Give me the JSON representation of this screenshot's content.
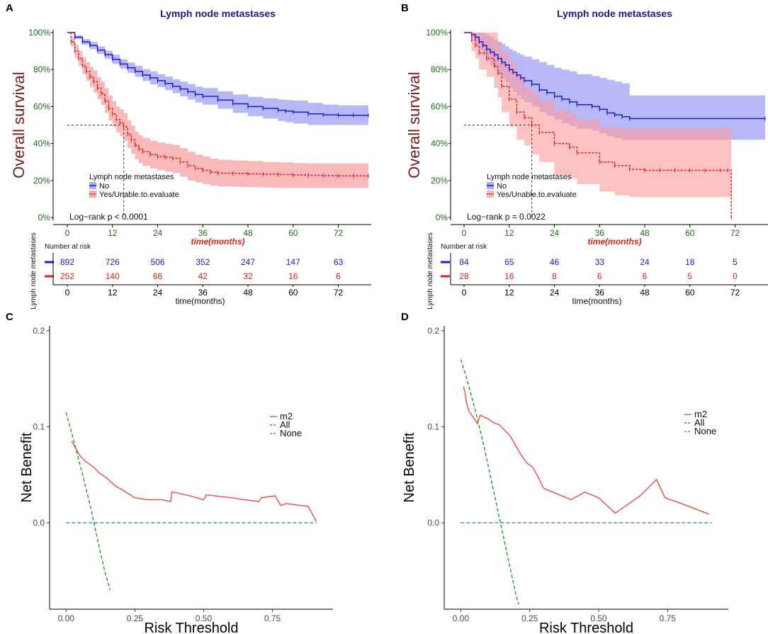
{
  "chart_data": [
    {
      "panel": "A",
      "type": "line",
      "subtype": "kaplan-meier",
      "title": "Lymph node metastases",
      "ylabel": "Overall survival",
      "xlabel": "time(months)",
      "ylim": [
        0,
        1
      ],
      "xlim": [
        0,
        80
      ],
      "y_ticks": [
        "0%",
        "20%",
        "40%",
        "60%",
        "80%",
        "100%"
      ],
      "x_ticks": [
        "0",
        "12",
        "24",
        "36",
        "48",
        "60",
        "72"
      ],
      "legend_title": "Lymph node metastases",
      "pvalue_text": "Log−rank p < 0.0001",
      "median_survival": {
        "survival": 0.5,
        "time": 15
      },
      "series": [
        {
          "name": "No",
          "color": "#1c1ccd",
          "band_color": "#8888f2",
          "x": [
            0,
            2,
            4,
            6,
            8,
            10,
            12,
            14,
            16,
            18,
            20,
            22,
            24,
            26,
            28,
            30,
            32,
            34,
            36,
            40,
            44,
            48,
            52,
            56,
            58,
            60,
            64,
            68,
            72,
            76,
            80
          ],
          "y": [
            1.0,
            0.975,
            0.95,
            0.93,
            0.905,
            0.88,
            0.855,
            0.83,
            0.81,
            0.79,
            0.77,
            0.755,
            0.74,
            0.725,
            0.71,
            0.695,
            0.68,
            0.665,
            0.655,
            0.635,
            0.615,
            0.6,
            0.59,
            0.58,
            0.575,
            0.57,
            0.56,
            0.555,
            0.553,
            0.553,
            0.553
          ],
          "lower": [
            1.0,
            0.965,
            0.935,
            0.91,
            0.885,
            0.858,
            0.83,
            0.805,
            0.782,
            0.76,
            0.738,
            0.72,
            0.705,
            0.688,
            0.672,
            0.655,
            0.638,
            0.622,
            0.61,
            0.588,
            0.565,
            0.548,
            0.535,
            0.522,
            0.515,
            0.508,
            0.5,
            0.5,
            0.5,
            0.5,
            0.5
          ],
          "upper": [
            1.0,
            0.985,
            0.965,
            0.95,
            0.925,
            0.902,
            0.88,
            0.855,
            0.838,
            0.82,
            0.802,
            0.79,
            0.775,
            0.762,
            0.748,
            0.735,
            0.722,
            0.708,
            0.7,
            0.682,
            0.665,
            0.652,
            0.645,
            0.638,
            0.635,
            0.632,
            0.62,
            0.61,
            0.606,
            0.606,
            0.606
          ]
        },
        {
          "name": "Yes/Unable.to.evaluate",
          "color": "#e0201c",
          "band_color": "#f28a8a",
          "x": [
            0,
            1,
            2,
            3,
            4,
            5,
            6,
            7,
            8,
            9,
            10,
            11,
            12,
            13,
            14,
            15,
            16,
            17,
            18,
            19,
            20,
            22,
            24,
            26,
            28,
            30,
            32,
            34,
            36,
            38,
            40,
            44,
            48,
            52,
            56,
            60,
            64,
            68,
            72,
            76,
            80
          ],
          "y": [
            1.0,
            0.95,
            0.9,
            0.86,
            0.82,
            0.79,
            0.76,
            0.735,
            0.7,
            0.67,
            0.63,
            0.59,
            0.56,
            0.53,
            0.51,
            0.49,
            0.45,
            0.42,
            0.39,
            0.37,
            0.355,
            0.34,
            0.33,
            0.325,
            0.32,
            0.3,
            0.28,
            0.265,
            0.255,
            0.245,
            0.24,
            0.238,
            0.236,
            0.234,
            0.232,
            0.23,
            0.228,
            0.226,
            0.225,
            0.225,
            0.225
          ],
          "lower": [
            1.0,
            0.925,
            0.865,
            0.82,
            0.775,
            0.74,
            0.705,
            0.675,
            0.64,
            0.608,
            0.565,
            0.525,
            0.49,
            0.46,
            0.44,
            0.415,
            0.375,
            0.345,
            0.315,
            0.295,
            0.28,
            0.265,
            0.255,
            0.248,
            0.24,
            0.22,
            0.2,
            0.19,
            0.18,
            0.172,
            0.168,
            0.166,
            0.164,
            0.162,
            0.16,
            0.16,
            0.16,
            0.16,
            0.16,
            0.16,
            0.16
          ],
          "upper": [
            1.0,
            0.975,
            0.935,
            0.9,
            0.865,
            0.84,
            0.815,
            0.795,
            0.76,
            0.735,
            0.7,
            0.66,
            0.63,
            0.6,
            0.585,
            0.565,
            0.525,
            0.495,
            0.465,
            0.445,
            0.43,
            0.415,
            0.405,
            0.398,
            0.392,
            0.375,
            0.355,
            0.34,
            0.33,
            0.318,
            0.312,
            0.308,
            0.305,
            0.3,
            0.298,
            0.294,
            0.292,
            0.292,
            0.292,
            0.292,
            0.292
          ]
        }
      ],
      "risk_table": {
        "header": "Number at risk",
        "ylabel": "Lymph node metastases",
        "xlabel": "time(months)",
        "times": [
          "0",
          "12",
          "24",
          "36",
          "48",
          "60",
          "72"
        ],
        "rows": [
          {
            "color": "#1c1ccd",
            "values": [
              "892",
              "726",
              "506",
              "352",
              "247",
              "147",
              "63"
            ]
          },
          {
            "color": "#e0201c",
            "values": [
              "252",
              "140",
              "66",
              "42",
              "32",
              "16",
              "6"
            ]
          }
        ]
      }
    },
    {
      "panel": "B",
      "type": "line",
      "subtype": "kaplan-meier",
      "title": "Lymph node metastases",
      "ylabel": "Overall survival",
      "xlabel": "time(months)",
      "ylim": [
        0,
        1
      ],
      "xlim": [
        0,
        80
      ],
      "y_ticks": [
        "0%",
        "20%",
        "40%",
        "60%",
        "80%",
        "100%"
      ],
      "x_ticks": [
        "0",
        "12",
        "24",
        "36",
        "48",
        "60",
        "72"
      ],
      "legend_title": "Lymph node metastases",
      "pvalue_text": "Log−rank p = 0.0022",
      "median_survival": {
        "survival": 0.5,
        "time": 18
      },
      "series": [
        {
          "name": "No",
          "color": "#1c1ccd",
          "band_color": "#8888f2",
          "x": [
            0,
            2,
            3,
            4,
            5,
            6,
            7,
            8,
            9,
            10,
            11,
            12,
            13,
            14,
            15,
            16,
            18,
            20,
            22,
            24,
            26,
            28,
            30,
            34,
            36,
            38,
            40,
            42,
            44,
            80
          ],
          "y": [
            1.0,
            0.99,
            0.975,
            0.95,
            0.93,
            0.91,
            0.895,
            0.88,
            0.86,
            0.84,
            0.825,
            0.8,
            0.785,
            0.77,
            0.755,
            0.74,
            0.72,
            0.69,
            0.675,
            0.655,
            0.64,
            0.625,
            0.61,
            0.6,
            0.585,
            0.565,
            0.555,
            0.545,
            0.535,
            0.535
          ],
          "lower": [
            1.0,
            0.97,
            0.94,
            0.905,
            0.875,
            0.845,
            0.82,
            0.8,
            0.775,
            0.75,
            0.73,
            0.7,
            0.68,
            0.66,
            0.64,
            0.625,
            0.6,
            0.57,
            0.55,
            0.53,
            0.51,
            0.495,
            0.48,
            0.47,
            0.455,
            0.44,
            0.43,
            0.42,
            0.42,
            0.42
          ],
          "upper": [
            1.0,
            1.0,
            1.0,
            1.0,
            0.995,
            0.985,
            0.975,
            0.96,
            0.95,
            0.94,
            0.925,
            0.91,
            0.9,
            0.89,
            0.88,
            0.87,
            0.855,
            0.84,
            0.825,
            0.81,
            0.8,
            0.79,
            0.775,
            0.765,
            0.755,
            0.745,
            0.735,
            0.725,
            0.66,
            0.66
          ]
        },
        {
          "name": "Yes/Unable.to.evaluate",
          "color": "#e0201c",
          "band_color": "#ff9a9a",
          "x": [
            0,
            2,
            3,
            4,
            6,
            8,
            9,
            10,
            12,
            14,
            16,
            18,
            20,
            24,
            28,
            30,
            36,
            40,
            44,
            48,
            52,
            56,
            60,
            64,
            68,
            70,
            71
          ],
          "y": [
            1.0,
            0.96,
            0.93,
            0.89,
            0.86,
            0.82,
            0.78,
            0.71,
            0.64,
            0.57,
            0.54,
            0.5,
            0.46,
            0.4,
            0.38,
            0.35,
            0.3,
            0.28,
            0.26,
            0.255,
            0.255,
            0.255,
            0.255,
            0.255,
            0.255,
            0.255,
            0.0
          ],
          "lower": [
            1.0,
            0.9,
            0.86,
            0.8,
            0.76,
            0.7,
            0.65,
            0.57,
            0.49,
            0.42,
            0.39,
            0.34,
            0.3,
            0.23,
            0.21,
            0.18,
            0.14,
            0.12,
            0.11,
            0.11,
            0.11,
            0.11,
            0.11,
            0.11,
            0.11,
            0.11,
            0.11
          ],
          "upper": [
            1.0,
            1.0,
            1.0,
            1.0,
            1.0,
            1.0,
            0.95,
            0.89,
            0.84,
            0.77,
            0.7,
            0.67,
            0.63,
            0.58,
            0.56,
            0.53,
            0.49,
            0.48,
            0.48,
            0.48,
            0.48,
            0.48,
            0.48,
            0.48,
            0.48,
            0.48,
            0.48
          ]
        }
      ],
      "risk_table": {
        "header": "Number at risk",
        "ylabel": "Lymph node metastases",
        "xlabel": "time(months)",
        "times": [
          "0",
          "12",
          "24",
          "36",
          "48",
          "60",
          "72"
        ],
        "rows": [
          {
            "color": "#1c1ccd",
            "values": [
              "84",
              "65",
              "46",
              "33",
              "24",
              "18",
              "5"
            ]
          },
          {
            "color": "#e0201c",
            "values": [
              "28",
              "16",
              "8",
              "6",
              "6",
              "5",
              "0"
            ]
          }
        ]
      }
    },
    {
      "panel": "C",
      "type": "line",
      "subtype": "decision-curve",
      "xlabel": "Risk Threshold",
      "ylabel": "Net Benefit",
      "xlim": [
        -0.06,
        0.97
      ],
      "ylim": [
        -0.09,
        0.205
      ],
      "x_ticks": [
        "0.00",
        "0.25",
        "0.50",
        "0.75"
      ],
      "y_ticks": [
        "0.0",
        "0.1",
        "0.2"
      ],
      "series": [
        {
          "name": "m2",
          "color": "#f24a45",
          "dash": "solid",
          "x": [
            0.02,
            0.03,
            0.05,
            0.07,
            0.1,
            0.12,
            0.15,
            0.18,
            0.2,
            0.25,
            0.3,
            0.35,
            0.38,
            0.385,
            0.39,
            0.45,
            0.5,
            0.51,
            0.6,
            0.7,
            0.71,
            0.76,
            0.78,
            0.8,
            0.88,
            0.91
          ],
          "y": [
            0.085,
            0.08,
            0.07,
            0.064,
            0.058,
            0.052,
            0.046,
            0.038,
            0.035,
            0.026,
            0.024,
            0.024,
            0.022,
            0.032,
            0.032,
            0.028,
            0.024,
            0.029,
            0.026,
            0.022,
            0.026,
            0.028,
            0.018,
            0.02,
            0.017,
            0.001
          ]
        },
        {
          "name": "All",
          "color": "#19a319",
          "dash": "dashed",
          "x": [
            0.0,
            0.03,
            0.06,
            0.09,
            0.12,
            0.14,
            0.16
          ],
          "y": [
            0.115,
            0.083,
            0.05,
            0.015,
            -0.025,
            -0.05,
            -0.07
          ]
        },
        {
          "name": "None",
          "color": "#3d8fdf",
          "dash": "dashed",
          "x": [
            0.0,
            0.91
          ],
          "y": [
            0.0,
            0.0
          ]
        }
      ]
    },
    {
      "panel": "D",
      "type": "line",
      "subtype": "decision-curve",
      "xlabel": "Risk Threshold",
      "ylabel": "Net Benefit",
      "xlim": [
        -0.06,
        0.97
      ],
      "ylim": [
        -0.09,
        0.205
      ],
      "x_ticks": [
        "0.00",
        "0.25",
        "0.50",
        "0.75"
      ],
      "y_ticks": [
        "0.0",
        "0.1",
        "0.2"
      ],
      "series": [
        {
          "name": "m2",
          "color": "#f24a45",
          "dash": "solid",
          "x": [
            0.01,
            0.015,
            0.02,
            0.03,
            0.05,
            0.06,
            0.07,
            0.1,
            0.12,
            0.14,
            0.16,
            0.18,
            0.2,
            0.22,
            0.24,
            0.26,
            0.28,
            0.3,
            0.35,
            0.4,
            0.45,
            0.5,
            0.56,
            0.6,
            0.65,
            0.71,
            0.74,
            0.8,
            0.9
          ],
          "y": [
            0.142,
            0.136,
            0.126,
            0.116,
            0.108,
            0.103,
            0.112,
            0.108,
            0.104,
            0.102,
            0.096,
            0.09,
            0.08,
            0.07,
            0.062,
            0.058,
            0.048,
            0.036,
            0.03,
            0.024,
            0.032,
            0.026,
            0.01,
            0.018,
            0.028,
            0.045,
            0.026,
            0.02,
            0.009
          ]
        },
        {
          "name": "All",
          "color": "#19a319",
          "dash": "dashed",
          "x": [
            0.0,
            0.02,
            0.05,
            0.08,
            0.11,
            0.14,
            0.17,
            0.2,
            0.21
          ],
          "y": [
            0.17,
            0.152,
            0.12,
            0.085,
            0.045,
            0.005,
            -0.035,
            -0.075,
            -0.085
          ]
        },
        {
          "name": "None",
          "color": "#3d8fdf",
          "dash": "dashed",
          "x": [
            0.0,
            0.91
          ],
          "y": [
            0.0,
            0.0
          ]
        }
      ]
    }
  ]
}
